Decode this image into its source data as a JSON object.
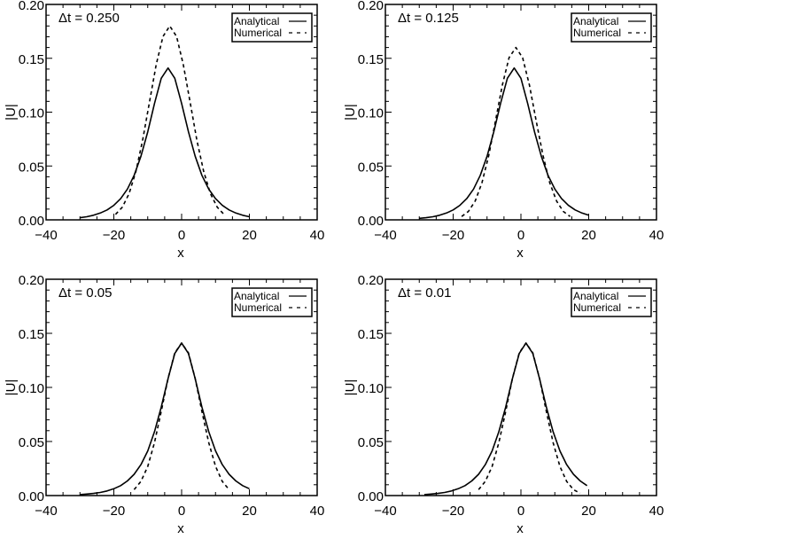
{
  "chart_data": [
    {
      "type": "line",
      "annotation": "Δt = 0.250",
      "xlabel": "x",
      "ylabel": "|U|",
      "xlim": [
        -40,
        40
      ],
      "ylim": [
        0,
        0.2
      ],
      "xticks": [
        "−40",
        "−20",
        "0",
        "20",
        "40"
      ],
      "yticks": [
        "0.00",
        "0.05",
        "0.10",
        "0.15",
        "0.20"
      ],
      "legend": {
        "position": "top-right"
      },
      "grid": false,
      "series": [
        {
          "name": "Analytical",
          "style": "solid",
          "x": [
            -30,
            -28,
            -26,
            -24,
            -22,
            -20,
            -18,
            -16,
            -14,
            -12,
            -10,
            -8,
            -6,
            -4,
            -2,
            0,
            2,
            4,
            6,
            8,
            10,
            12,
            14,
            16,
            18,
            20
          ],
          "y": [
            0.002,
            0.0029,
            0.0043,
            0.0063,
            0.0092,
            0.0135,
            0.0197,
            0.0286,
            0.0413,
            0.0591,
            0.0818,
            0.1081,
            0.1314,
            0.141,
            0.1314,
            0.1081,
            0.0818,
            0.0591,
            0.0413,
            0.0286,
            0.0197,
            0.0135,
            0.0092,
            0.0063,
            0.0043,
            0.0029
          ]
        },
        {
          "name": "Numerical",
          "style": "dashed",
          "x": [
            -19.5,
            -17.5,
            -15.5,
            -13.5,
            -11.5,
            -9.5,
            -7.5,
            -5.5,
            -3.5,
            -1.5,
            0.5,
            2.5,
            4.5,
            6.5,
            8.5,
            10.5,
            12.5
          ],
          "y": [
            0.0051,
            0.0118,
            0.0244,
            0.0449,
            0.074,
            0.1092,
            0.1441,
            0.1703,
            0.18,
            0.1703,
            0.1441,
            0.1092,
            0.074,
            0.0449,
            0.0244,
            0.0118,
            0.0051
          ]
        }
      ]
    },
    {
      "type": "line",
      "annotation": "Δt = 0.125",
      "xlabel": "x",
      "ylabel": "|U|",
      "xlim": [
        -40,
        40
      ],
      "ylim": [
        0,
        0.2
      ],
      "xticks": [
        "−40",
        "−20",
        "0",
        "20",
        "40"
      ],
      "yticks": [
        "0.00",
        "0.05",
        "0.10",
        "0.15",
        "0.20"
      ],
      "legend": {
        "position": "top-right"
      },
      "grid": false,
      "series": [
        {
          "name": "Analytical",
          "style": "solid",
          "x": [
            -30,
            -28,
            -26,
            -24,
            -22,
            -20,
            -18,
            -16,
            -14,
            -12,
            -10,
            -8,
            -6,
            -4,
            -2,
            0,
            2,
            4,
            6,
            8,
            10,
            12,
            14,
            16,
            18,
            20
          ],
          "y": [
            0.0014,
            0.002,
            0.0029,
            0.0043,
            0.0063,
            0.0092,
            0.0135,
            0.0197,
            0.0286,
            0.0413,
            0.0591,
            0.0818,
            0.1081,
            0.1314,
            0.141,
            0.1314,
            0.1081,
            0.0818,
            0.0591,
            0.0413,
            0.0286,
            0.0197,
            0.0135,
            0.0092,
            0.0063,
            0.0043
          ]
        },
        {
          "name": "Numerical",
          "style": "dashed",
          "x": [
            -17.5,
            -15.5,
            -13.5,
            -11.5,
            -9.5,
            -7.5,
            -5.5,
            -3.5,
            -1.5,
            0.5,
            2.5,
            4.5,
            6.5,
            8.5,
            10.5,
            12.5,
            14.5
          ],
          "y": [
            0.0031,
            0.0078,
            0.0175,
            0.0344,
            0.0598,
            0.0919,
            0.1251,
            0.1505,
            0.16,
            0.1505,
            0.1251,
            0.0919,
            0.0598,
            0.0344,
            0.0175,
            0.0078,
            0.0031
          ]
        }
      ]
    },
    {
      "type": "line",
      "annotation": "Δt = 0.05",
      "xlabel": "x",
      "ylabel": "|U|",
      "xlim": [
        -40,
        40
      ],
      "ylim": [
        0,
        0.2
      ],
      "xticks": [
        "−40",
        "−20",
        "0",
        "20",
        "40"
      ],
      "yticks": [
        "0.00",
        "0.05",
        "0.10",
        "0.15",
        "0.20"
      ],
      "legend": {
        "position": "top-right"
      },
      "grid": false,
      "series": [
        {
          "name": "Analytical",
          "style": "solid",
          "x": [
            -30,
            -28,
            -26,
            -24,
            -22,
            -20,
            -18,
            -16,
            -14,
            -12,
            -10,
            -8,
            -6,
            -4,
            -2,
            0,
            2,
            4,
            6,
            8,
            10,
            12,
            14,
            16,
            18,
            20
          ],
          "y": [
            0.0009,
            0.0014,
            0.002,
            0.0029,
            0.0043,
            0.0063,
            0.0092,
            0.0135,
            0.0197,
            0.0286,
            0.0413,
            0.0591,
            0.0818,
            0.1081,
            0.1314,
            0.141,
            0.1314,
            0.1081,
            0.0818,
            0.0591,
            0.0413,
            0.0286,
            0.0197,
            0.0135,
            0.0092,
            0.0063
          ]
        },
        {
          "name": "Numerical",
          "style": "dashed",
          "x": [
            -14,
            -12,
            -10,
            -8,
            -6,
            -4,
            -2,
            0,
            2,
            4,
            6,
            8,
            10,
            12,
            14
          ],
          "y": [
            0.0055,
            0.0131,
            0.027,
            0.049,
            0.0778,
            0.1083,
            0.132,
            0.141,
            0.132,
            0.1083,
            0.0778,
            0.049,
            0.027,
            0.0131,
            0.0055
          ]
        }
      ]
    },
    {
      "type": "line",
      "annotation": "Δt = 0.01",
      "xlabel": "x",
      "ylabel": "|U|",
      "xlim": [
        -40,
        40
      ],
      "ylim": [
        0,
        0.2
      ],
      "xticks": [
        "−40",
        "−20",
        "0",
        "20",
        "40"
      ],
      "yticks": [
        "0.00",
        "0.05",
        "0.10",
        "0.15",
        "0.20"
      ],
      "legend": {
        "position": "top-right"
      },
      "grid": false,
      "series": [
        {
          "name": "Analytical",
          "style": "solid",
          "x": [
            -28.5,
            -26.5,
            -24.5,
            -22.5,
            -20.5,
            -18.5,
            -16.5,
            -14.5,
            -12.5,
            -10.5,
            -8.5,
            -6.5,
            -4.5,
            -2.5,
            -0.5,
            1.5,
            3.5,
            5.5,
            7.5,
            9.5,
            11.5,
            13.5,
            15.5,
            17.5,
            19.5
          ],
          "y": [
            0.0009,
            0.0014,
            0.002,
            0.0029,
            0.0043,
            0.0063,
            0.0092,
            0.0135,
            0.0197,
            0.0286,
            0.0413,
            0.0591,
            0.0818,
            0.1081,
            0.1314,
            0.141,
            0.1314,
            0.1081,
            0.0818,
            0.0591,
            0.0413,
            0.0286,
            0.0197,
            0.0135,
            0.0092
          ]
        },
        {
          "name": "Numerical",
          "style": "dashed",
          "x": [
            -12.5,
            -10.5,
            -8.5,
            -6.5,
            -4.5,
            -2.5,
            -0.5,
            1.5,
            3.5,
            5.5,
            7.5,
            9.5,
            11.5,
            13.5,
            15.5,
            17.5
          ],
          "y": [
            0.0055,
            0.0131,
            0.027,
            0.049,
            0.0778,
            0.1083,
            0.132,
            0.141,
            0.132,
            0.1083,
            0.0778,
            0.049,
            0.027,
            0.0131,
            0.0055,
            0.0021
          ]
        }
      ]
    }
  ]
}
